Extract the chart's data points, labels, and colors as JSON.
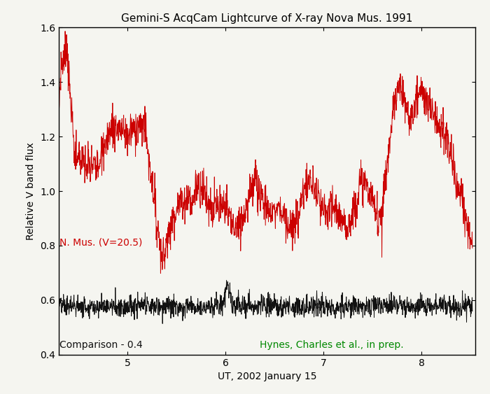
{
  "title": "Gemini-S AcqCam Lightcurve of X-ray Nova Mus. 1991",
  "xlabel": "UT, 2002 January 15",
  "ylabel": "Relative V band flux",
  "xlim": [
    4.3,
    8.55
  ],
  "ylim": [
    0.4,
    1.6
  ],
  "xticks": [
    5,
    6,
    7,
    8
  ],
  "yticks": [
    0.4,
    0.6,
    0.8,
    1.0,
    1.2,
    1.4,
    1.6
  ],
  "red_label": "N. Mus. (V=20.5)",
  "black_label": "Comparison - 0.4",
  "green_label": "Hynes, Charles et al., in prep.",
  "red_color": "#cc0000",
  "black_color": "#111111",
  "green_color": "#008800",
  "bg_color": "#f5f5f0",
  "title_fontsize": 11,
  "label_fontsize": 10,
  "tick_fontsize": 10,
  "annotation_fontsize": 10,
  "seed_red": 7,
  "seed_black": 13
}
